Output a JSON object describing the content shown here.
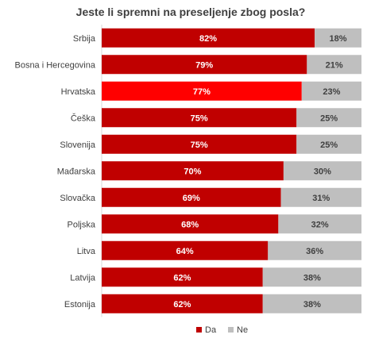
{
  "chart_data": {
    "type": "bar",
    "orientation": "horizontal",
    "stacked": "percent",
    "title": "Jeste li spremni na preseljenje zbog posla?",
    "categories": [
      "Srbija",
      "Bosna i Hercegovina",
      "Hrvatska",
      "Češka",
      "Slovenija",
      "Mađarska",
      "Slovačka",
      "Poljska",
      "Litva",
      "Latvija",
      "Estonija"
    ],
    "series": [
      {
        "name": "Da",
        "color": "#C00000",
        "values": [
          82,
          79,
          77,
          75,
          75,
          70,
          69,
          68,
          64,
          62,
          62
        ]
      },
      {
        "name": "Ne",
        "color": "#BFBFBF",
        "values": [
          18,
          21,
          23,
          25,
          25,
          30,
          31,
          32,
          36,
          38,
          38
        ]
      }
    ],
    "value_suffix": "%",
    "highlight": {
      "category": "Hrvatska",
      "series": "Da",
      "color": "#FF0000"
    },
    "xlim": [
      0,
      100
    ],
    "grid": false,
    "legend_position": "bottom"
  }
}
